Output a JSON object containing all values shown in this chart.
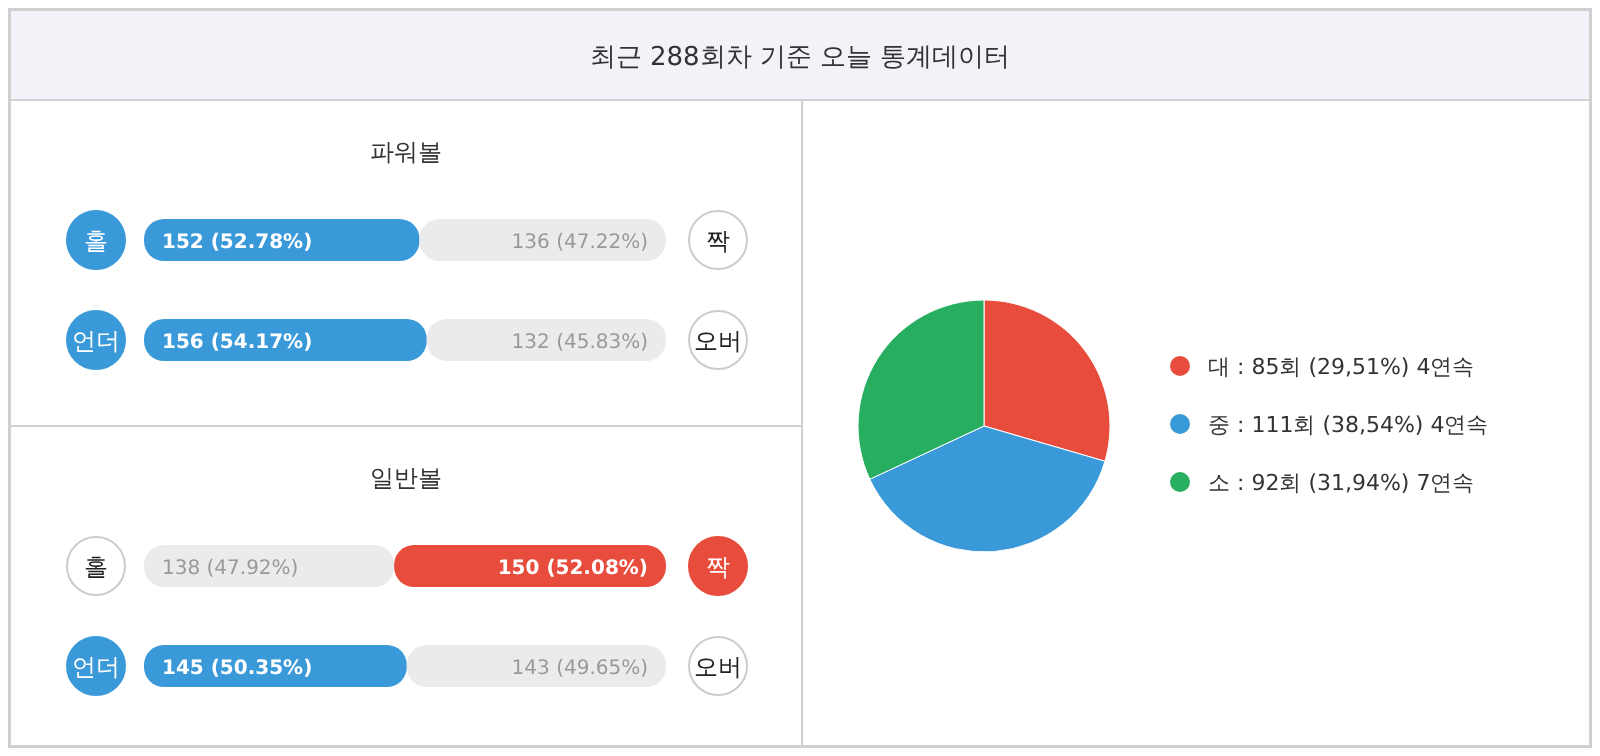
{
  "chart_data": [
    {
      "type": "other",
      "title": "최근 288회차 기준 오늘 통계데이터"
    },
    {
      "type": "bar",
      "orientation": "horizontal",
      "stacked": true,
      "title": "파워볼",
      "categories": [
        "홀",
        "언더"
      ],
      "annotations": [
        "짝",
        "오버"
      ],
      "xlim": [
        0,
        288
      ],
      "series": [
        {
          "colors": [
            "#3a99d8",
            "#3a99d8"
          ],
          "values": [
            152,
            156
          ],
          "value_labels": [
            "152 (52.78%)",
            "156 (54.17%)"
          ]
        },
        {
          "colors": [
            "#ebebeb",
            "#ebebeb"
          ],
          "values": [
            136,
            132
          ],
          "value_labels": [
            "136 (47.22%)",
            "132 (45.83%)"
          ]
        }
      ]
    },
    {
      "type": "bar",
      "orientation": "horizontal",
      "stacked": true,
      "title": "일반볼",
      "categories": [
        "홀",
        "언더"
      ],
      "annotations": [
        "짝",
        "오버"
      ],
      "xlim": [
        0,
        288
      ],
      "series": [
        {
          "colors": [
            "#ebebeb",
            "#3a99d8"
          ],
          "values": [
            138,
            145
          ],
          "value_labels": [
            "138 (47.92%)",
            "145 (50.35%)"
          ]
        },
        {
          "colors": [
            "#e74c3c",
            "#ebebeb"
          ],
          "values": [
            150,
            143
          ],
          "value_labels": [
            "150 (52.08%)",
            "143 (49.65%)"
          ]
        }
      ]
    },
    {
      "type": "pie",
      "categories": [
        "대 : 85회 (29,51%) 4연속",
        "중 : 111회 (38,54%) 4연속",
        "소 : 92회 (31,94%) 7연속"
      ],
      "values": [
        85,
        111,
        92
      ],
      "colors": [
        "#e74c3c",
        "#3a99d8",
        "#27ae60"
      ],
      "legend": "right"
    }
  ]
}
